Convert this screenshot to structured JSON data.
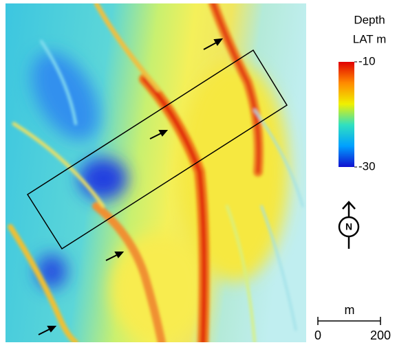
{
  "legend": {
    "title": [
      "Depth",
      "LAT m"
    ],
    "ticks": [
      -10,
      -30
    ]
  },
  "north_label": "N",
  "scale_bar": {
    "unit": "m",
    "ticks": [
      0,
      200
    ]
  }
}
